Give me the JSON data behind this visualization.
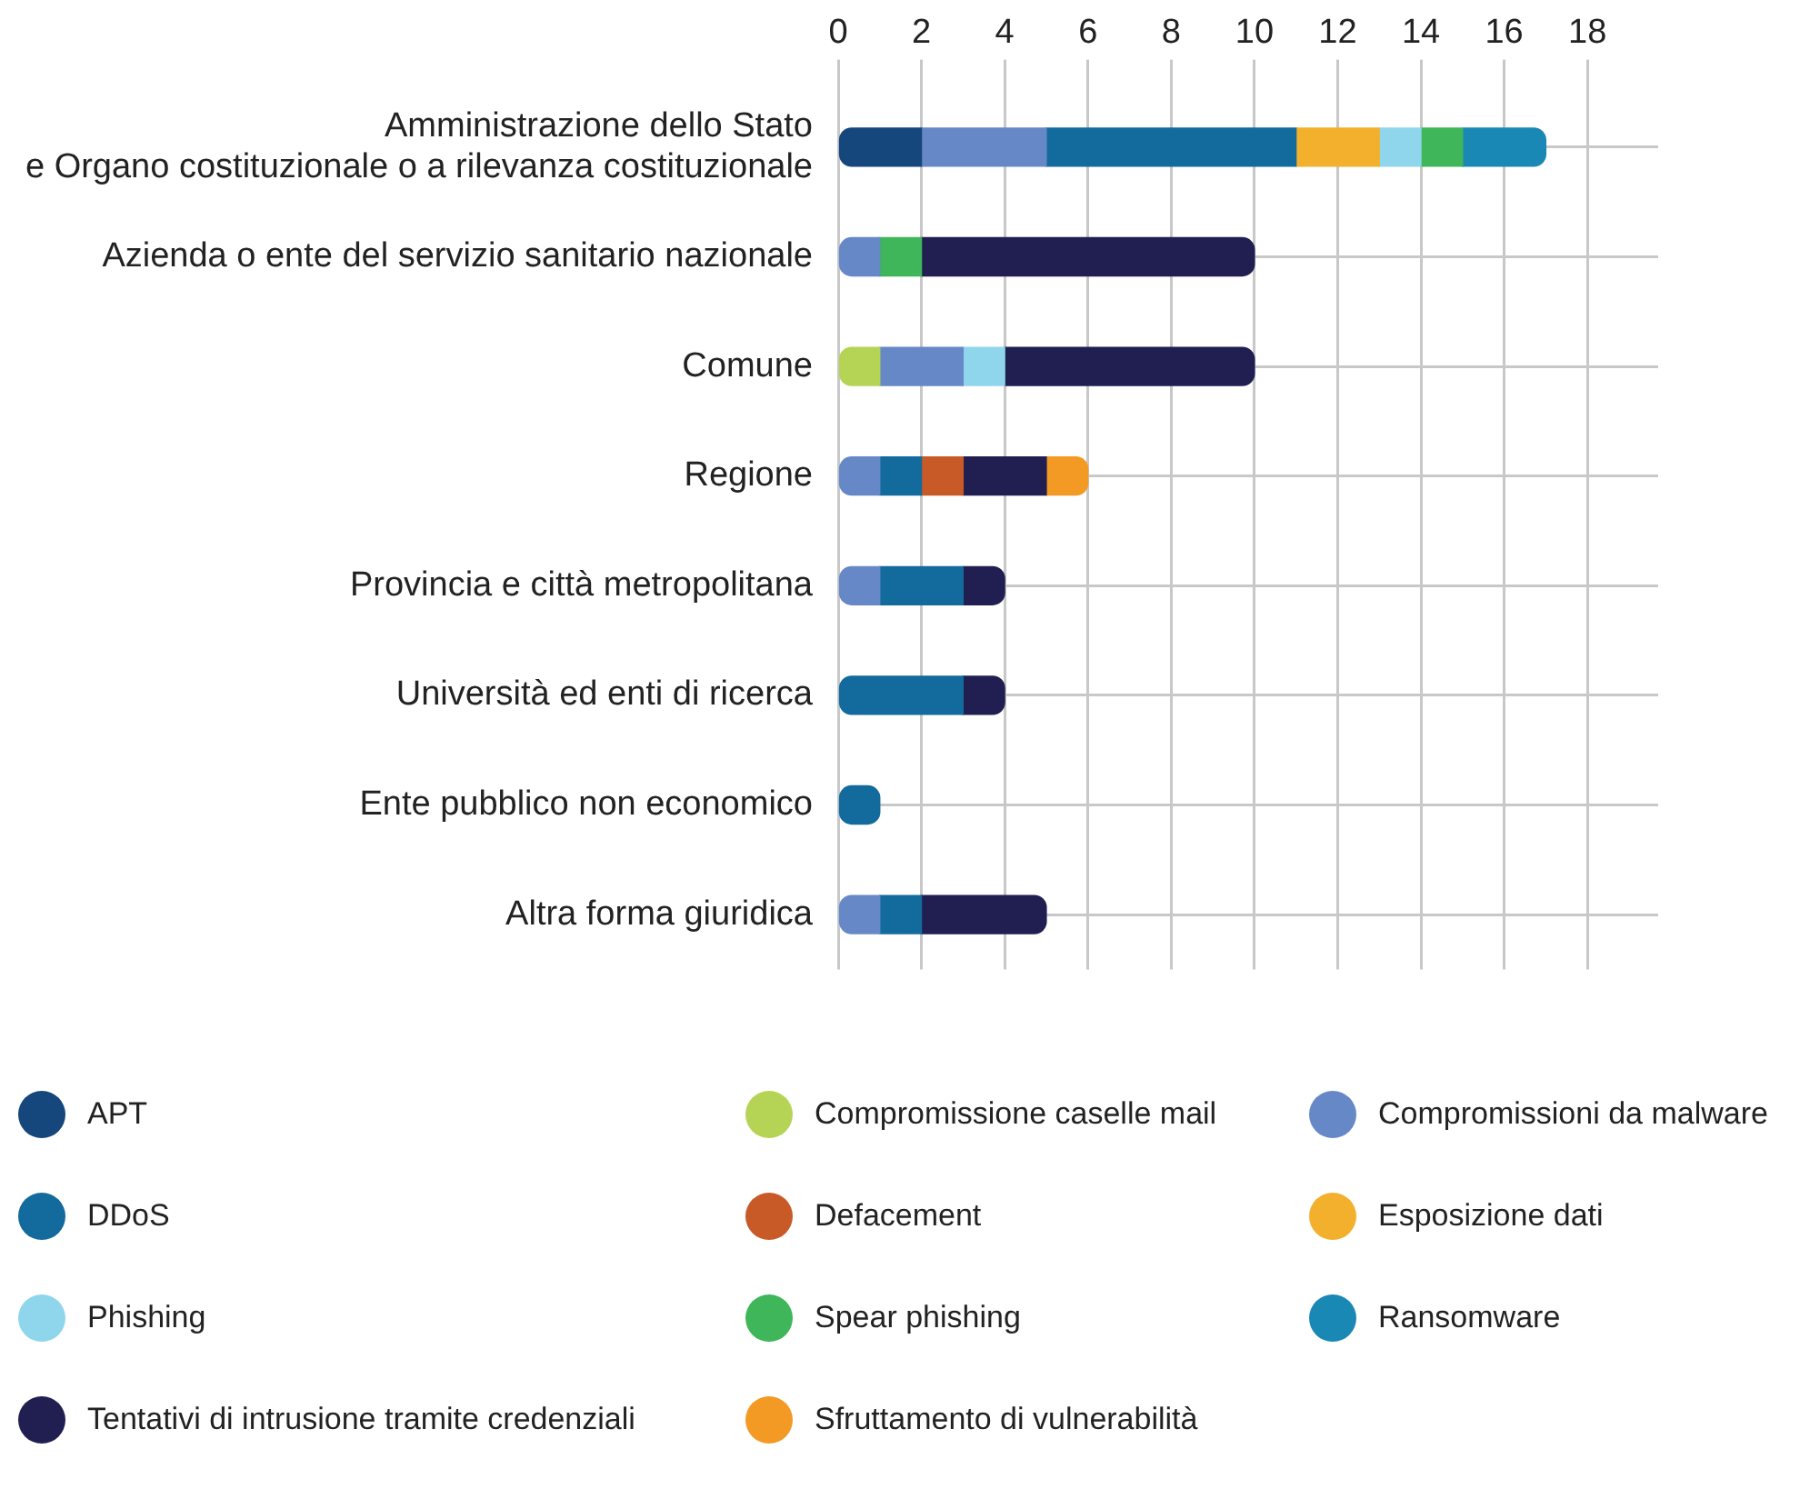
{
  "chart_data": {
    "type": "bar",
    "orientation": "horizontal",
    "stacked": true,
    "categories": [
      "Amministrazione dello Stato e Organo costituzionale o a rilevanza costituzionale",
      "Azienda o ente del servizio sanitario nazionale",
      "Comune",
      "Regione",
      "Provincia e città metropolitana",
      "Università ed enti di ricerca",
      "Ente pubblico non economico",
      "Altra forma giuridica"
    ],
    "series": [
      {
        "name": "APT",
        "color": "#15467c",
        "values": [
          2,
          0,
          0,
          0,
          0,
          0,
          0,
          0
        ]
      },
      {
        "name": "Compromissione caselle mail",
        "color": "#b5d455",
        "values": [
          0,
          0,
          1,
          0,
          0,
          0,
          0,
          0
        ]
      },
      {
        "name": "Compromissioni da malware",
        "color": "#6688c6",
        "values": [
          3,
          1,
          2,
          1,
          1,
          0,
          0,
          1
        ]
      },
      {
        "name": "DDoS",
        "color": "#136a9c",
        "values": [
          6,
          0,
          0,
          1,
          2,
          3,
          1,
          1
        ]
      },
      {
        "name": "Defacement",
        "color": "#c85a28",
        "values": [
          0,
          0,
          0,
          1,
          0,
          0,
          0,
          0
        ]
      },
      {
        "name": "Esposizione dati",
        "color": "#f2b02c",
        "values": [
          2,
          0,
          0,
          0,
          0,
          0,
          0,
          0
        ]
      },
      {
        "name": "Phishing",
        "color": "#8fd6ec",
        "values": [
          1,
          0,
          1,
          0,
          0,
          0,
          0,
          0
        ]
      },
      {
        "name": "Spear phishing",
        "color": "#3fb65a",
        "values": [
          1,
          1,
          0,
          0,
          0,
          0,
          0,
          0
        ]
      },
      {
        "name": "Ransomware",
        "color": "#1a88b5",
        "values": [
          2,
          0,
          0,
          0,
          0,
          0,
          0,
          0
        ]
      },
      {
        "name": "Tentativi di intrusione tramite credenziali",
        "color": "#211f52",
        "values": [
          0,
          8,
          6,
          2,
          1,
          1,
          0,
          3
        ]
      },
      {
        "name": "Sfruttamento di vulnerabilità",
        "color": "#f39a25",
        "values": [
          0,
          0,
          0,
          1,
          0,
          0,
          0,
          0
        ]
      }
    ],
    "xlim": [
      0,
      19.7
    ],
    "xticks": [
      0,
      2,
      4,
      6,
      8,
      10,
      12,
      14,
      16,
      18
    ],
    "grid": true,
    "legend": "bottom"
  }
}
